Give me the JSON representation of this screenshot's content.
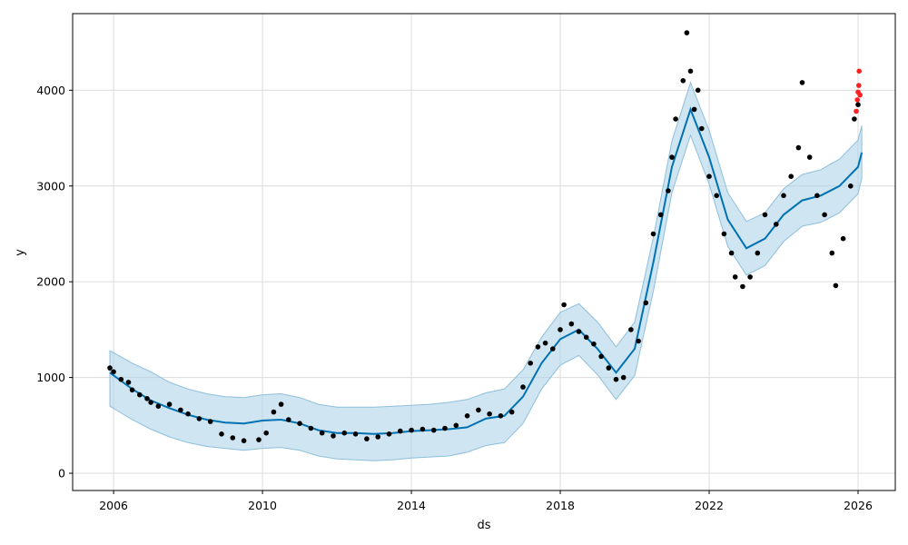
{
  "chart_data": {
    "type": "scatter",
    "title": "",
    "xlabel": "ds",
    "ylabel": "y",
    "xlim": [
      2004.9,
      2027.0
    ],
    "ylim": [
      -180,
      4800
    ],
    "grid": true,
    "legend": "none",
    "x_ticks": [
      2006,
      2010,
      2014,
      2018,
      2022,
      2026
    ],
    "y_ticks": [
      0,
      1000,
      2000,
      3000,
      4000
    ],
    "colors": {
      "observed": "#000000",
      "test": "#ff2020",
      "forecast": "#0072b2",
      "interval_fill": "#a8cfe6",
      "interval_edge": "#8dbfdc",
      "grid": "#dcdcdc"
    },
    "series": [
      {
        "kind": "observed",
        "points": [
          [
            2005.9,
            1100
          ],
          [
            2006.0,
            1060
          ],
          [
            2006.2,
            980
          ],
          [
            2006.4,
            950
          ],
          [
            2006.5,
            870
          ],
          [
            2006.7,
            820
          ],
          [
            2006.9,
            780
          ],
          [
            2007.0,
            740
          ],
          [
            2007.2,
            700
          ],
          [
            2007.5,
            720
          ],
          [
            2007.8,
            660
          ],
          [
            2008.0,
            620
          ],
          [
            2008.3,
            570
          ],
          [
            2008.6,
            540
          ],
          [
            2008.9,
            410
          ],
          [
            2009.2,
            370
          ],
          [
            2009.5,
            340
          ],
          [
            2009.9,
            350
          ],
          [
            2010.1,
            420
          ],
          [
            2010.3,
            640
          ],
          [
            2010.5,
            720
          ],
          [
            2010.7,
            560
          ],
          [
            2011.0,
            520
          ],
          [
            2011.3,
            470
          ],
          [
            2011.6,
            420
          ],
          [
            2011.9,
            390
          ],
          [
            2012.2,
            420
          ],
          [
            2012.5,
            410
          ],
          [
            2012.8,
            360
          ],
          [
            2013.1,
            380
          ],
          [
            2013.4,
            410
          ],
          [
            2013.7,
            440
          ],
          [
            2014.0,
            450
          ],
          [
            2014.3,
            460
          ],
          [
            2014.6,
            450
          ],
          [
            2014.9,
            470
          ],
          [
            2015.2,
            500
          ],
          [
            2015.5,
            600
          ],
          [
            2015.8,
            660
          ],
          [
            2016.1,
            620
          ],
          [
            2016.4,
            600
          ],
          [
            2016.7,
            640
          ],
          [
            2017.0,
            900
          ],
          [
            2017.2,
            1150
          ],
          [
            2017.4,
            1320
          ],
          [
            2017.6,
            1360
          ],
          [
            2017.8,
            1300
          ],
          [
            2018.0,
            1500
          ],
          [
            2018.1,
            1760
          ],
          [
            2018.3,
            1560
          ],
          [
            2018.5,
            1480
          ],
          [
            2018.7,
            1420
          ],
          [
            2018.9,
            1350
          ],
          [
            2019.1,
            1220
          ],
          [
            2019.3,
            1100
          ],
          [
            2019.5,
            980
          ],
          [
            2019.7,
            1000
          ],
          [
            2019.9,
            1500
          ],
          [
            2020.1,
            1380
          ],
          [
            2020.3,
            1780
          ],
          [
            2020.5,
            2500
          ],
          [
            2020.7,
            2700
          ],
          [
            2020.9,
            2950
          ],
          [
            2021.0,
            3300
          ],
          [
            2021.1,
            3700
          ],
          [
            2021.3,
            4100
          ],
          [
            2021.4,
            4600
          ],
          [
            2021.5,
            4200
          ],
          [
            2021.6,
            3800
          ],
          [
            2021.7,
            4000
          ],
          [
            2021.8,
            3600
          ],
          [
            2022.0,
            3100
          ],
          [
            2022.2,
            2900
          ],
          [
            2022.4,
            2500
          ],
          [
            2022.6,
            2300
          ],
          [
            2022.7,
            2050
          ],
          [
            2022.9,
            1950
          ],
          [
            2023.1,
            2050
          ],
          [
            2023.3,
            2300
          ],
          [
            2023.5,
            2700
          ],
          [
            2023.8,
            2600
          ],
          [
            2024.0,
            2900
          ],
          [
            2024.2,
            3100
          ],
          [
            2024.4,
            3400
          ],
          [
            2024.5,
            4080
          ],
          [
            2024.7,
            3300
          ],
          [
            2024.9,
            2900
          ],
          [
            2025.1,
            2700
          ],
          [
            2025.3,
            2300
          ],
          [
            2025.4,
            1960
          ],
          [
            2025.6,
            2450
          ],
          [
            2025.8,
            3000
          ],
          [
            2025.9,
            3700
          ],
          [
            2026.0,
            3850
          ]
        ]
      },
      {
        "kind": "test",
        "points": [
          [
            2025.95,
            3780
          ],
          [
            2025.98,
            3900
          ],
          [
            2026.0,
            3980
          ],
          [
            2026.02,
            4050
          ],
          [
            2026.03,
            4200
          ],
          [
            2026.05,
            3950
          ]
        ]
      },
      {
        "kind": "forecast",
        "x": [
          2005.9,
          2006.5,
          2007.0,
          2007.5,
          2008.0,
          2008.5,
          2009.0,
          2009.5,
          2010.0,
          2010.5,
          2011.0,
          2011.5,
          2012.0,
          2012.5,
          2013.0,
          2013.5,
          2014.0,
          2014.5,
          2015.0,
          2015.5,
          2016.0,
          2016.5,
          2017.0,
          2017.5,
          2018.0,
          2018.5,
          2019.0,
          2019.5,
          2020.0,
          2020.5,
          2021.0,
          2021.5,
          2022.0,
          2022.5,
          2023.0,
          2023.5,
          2024.0,
          2024.5,
          2025.0,
          2025.5,
          2026.0,
          2026.1
        ],
        "yhat": [
          1050,
          880,
          760,
          680,
          610,
          560,
          530,
          520,
          550,
          560,
          520,
          450,
          420,
          420,
          410,
          420,
          440,
          450,
          460,
          480,
          570,
          600,
          800,
          1150,
          1400,
          1500,
          1300,
          1050,
          1300,
          2200,
          3200,
          3800,
          3300,
          2650,
          2350,
          2450,
          2700,
          2850,
          2900,
          3000,
          3200,
          3350
        ],
        "yhat_lower": [
          700,
          560,
          460,
          380,
          320,
          280,
          260,
          240,
          260,
          270,
          240,
          180,
          150,
          140,
          130,
          140,
          160,
          170,
          180,
          220,
          290,
          320,
          520,
          880,
          1130,
          1230,
          1030,
          770,
          1020,
          1900,
          2930,
          3530,
          3020,
          2370,
          2070,
          2170,
          2420,
          2580,
          2620,
          2720,
          2920,
          3080
        ],
        "yhat_upper": [
          1280,
          1150,
          1060,
          950,
          880,
          830,
          800,
          790,
          820,
          830,
          790,
          720,
          690,
          690,
          690,
          700,
          710,
          720,
          740,
          770,
          840,
          880,
          1080,
          1420,
          1680,
          1770,
          1580,
          1320,
          1580,
          2460,
          3470,
          4080,
          3580,
          2930,
          2630,
          2720,
          2970,
          3120,
          3170,
          3280,
          3480,
          3630
        ]
      }
    ]
  }
}
